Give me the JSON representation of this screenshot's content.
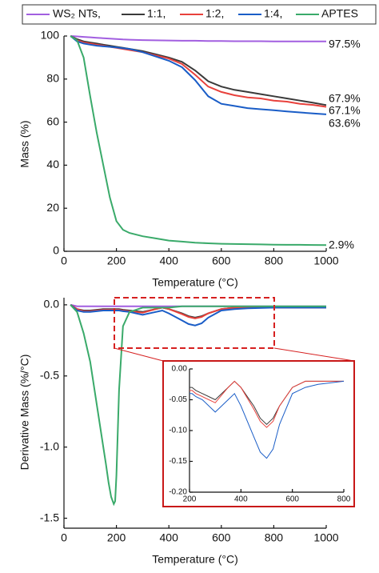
{
  "chart_data": [
    {
      "type": "line",
      "ylabel": "Mass (%)",
      "xlabel": "Temperature (°C)",
      "x": [
        25,
        50,
        75,
        100,
        125,
        150,
        175,
        200,
        225,
        250,
        300,
        350,
        400,
        450,
        500,
        550,
        600,
        650,
        700,
        750,
        800,
        850,
        900,
        950,
        1000
      ],
      "xlim": [
        0,
        1000
      ],
      "xticks": [
        0,
        200,
        400,
        600,
        800,
        1000
      ],
      "ylim": [
        0,
        100
      ],
      "yticks": [
        0,
        20,
        40,
        60,
        80,
        100
      ],
      "series": [
        {
          "name": "WS₂ NTs,",
          "color": "#a25fe0",
          "values": [
            100,
            99.8,
            99.6,
            99.4,
            99.2,
            99,
            98.8,
            98.6,
            98.4,
            98.3,
            98.1,
            98,
            97.9,
            97.8,
            97.8,
            97.7,
            97.7,
            97.6,
            97.6,
            97.6,
            97.5,
            97.5,
            97.5,
            97.5,
            97.5
          ]
        },
        {
          "name": "1:1,",
          "color": "#3a3a3a",
          "values": [
            100,
            98.5,
            97.5,
            97,
            96.5,
            96,
            95.5,
            95,
            94.5,
            94,
            93,
            91.5,
            90,
            88,
            84,
            79,
            76.5,
            75,
            74,
            73,
            72,
            71,
            70,
            69,
            67.9
          ]
        },
        {
          "name": "1:2,",
          "color": "#e8413c",
          "values": [
            100,
            98,
            97,
            96.5,
            96,
            95.5,
            95,
            94.5,
            94,
            93.5,
            92.5,
            91,
            89.5,
            87,
            82,
            76.5,
            74,
            72.5,
            71.5,
            71,
            70,
            69.5,
            68.5,
            68,
            67.1
          ]
        },
        {
          "name": "1:4,",
          "color": "#1a5dc7",
          "values": [
            100,
            97.5,
            96.5,
            96,
            95.5,
            95.2,
            95,
            94.7,
            94.3,
            94,
            92.5,
            90.5,
            88.5,
            85.5,
            79.5,
            72,
            68.5,
            67.5,
            66.5,
            66,
            65.5,
            65,
            64.5,
            64,
            63.6
          ]
        },
        {
          "name": "APTES",
          "color": "#3aaa6a",
          "values": [
            100,
            98,
            90,
            72,
            55,
            40,
            25,
            14,
            10,
            8.5,
            7,
            6,
            5,
            4.5,
            4,
            3.7,
            3.5,
            3.4,
            3.3,
            3.2,
            3.1,
            3,
            3,
            2.95,
            2.9
          ]
        }
      ],
      "annotations": [
        "97.5%",
        "67.9%",
        "67.1%",
        "63.6%",
        "2.9%"
      ]
    },
    {
      "type": "line",
      "ylabel": "Derivative Mass (%/°C)",
      "xlabel": "Temperature (°C)",
      "x": [
        25,
        50,
        75,
        100,
        125,
        150,
        160,
        170,
        180,
        190,
        195,
        200,
        210,
        225,
        250,
        300,
        350,
        375,
        400,
        450,
        475,
        500,
        525,
        550,
        600,
        650,
        700,
        800,
        900,
        1000
      ],
      "xlim": [
        0,
        1000
      ],
      "xticks": [
        0,
        200,
        400,
        600,
        800,
        1000
      ],
      "ylim": [
        -1.57,
        0.05
      ],
      "yticks": [
        {
          "value": 0,
          "label": "0.0"
        },
        -0.5,
        {
          "value": -1,
          "label": "-1.0"
        },
        -1.5
      ],
      "series": [
        {
          "color": "#a25fe0",
          "values": [
            0,
            -0.01,
            -0.01,
            -0.01,
            -0.01,
            -0.01,
            -0.01,
            -0.01,
            -0.01,
            -0.01,
            -0.01,
            -0.01,
            -0.01,
            -0.01,
            -0.01,
            -0.01,
            -0.01,
            -0.01,
            -0.01,
            -0.01,
            -0.01,
            -0.01,
            -0.01,
            -0.01,
            -0.01,
            -0.01,
            -0.01,
            -0.01,
            -0.01,
            -0.01
          ]
        },
        {
          "color": "#3a3a3a",
          "values": [
            0,
            -0.03,
            -0.04,
            -0.04,
            -0.035,
            -0.03,
            -0.03,
            -0.03,
            -0.03,
            -0.03,
            -0.03,
            -0.03,
            -0.03,
            -0.035,
            -0.04,
            -0.05,
            -0.03,
            -0.02,
            -0.03,
            -0.06,
            -0.08,
            -0.09,
            -0.08,
            -0.06,
            -0.03,
            -0.02,
            -0.02,
            -0.02,
            -0.02,
            -0.02
          ]
        },
        {
          "color": "#e8413c",
          "values": [
            0,
            -0.03,
            -0.045,
            -0.045,
            -0.04,
            -0.035,
            -0.035,
            -0.035,
            -0.035,
            -0.035,
            -0.035,
            -0.035,
            -0.035,
            -0.04,
            -0.045,
            -0.055,
            -0.03,
            -0.02,
            -0.03,
            -0.065,
            -0.085,
            -0.095,
            -0.085,
            -0.06,
            -0.03,
            -0.02,
            -0.02,
            -0.02,
            -0.02,
            -0.02
          ]
        },
        {
          "color": "#1a5dc7",
          "values": [
            0,
            -0.04,
            -0.05,
            -0.05,
            -0.045,
            -0.04,
            -0.04,
            -0.04,
            -0.04,
            -0.04,
            -0.04,
            -0.04,
            -0.04,
            -0.045,
            -0.05,
            -0.07,
            -0.05,
            -0.04,
            -0.06,
            -0.11,
            -0.135,
            -0.145,
            -0.13,
            -0.09,
            -0.04,
            -0.03,
            -0.025,
            -0.02,
            -0.02,
            -0.02
          ]
        },
        {
          "color": "#3aaa6a",
          "values": [
            0,
            -0.05,
            -0.2,
            -0.4,
            -0.7,
            -1,
            -1.12,
            -1.25,
            -1.35,
            -1.4,
            -1.38,
            -1.2,
            -0.6,
            -0.15,
            -0.05,
            -0.02,
            -0.02,
            -0.02,
            -0.02,
            -0.01,
            -0.01,
            -0.01,
            -0.01,
            -0.01,
            -0.01,
            -0.01,
            -0.01,
            -0.01,
            -0.01,
            -0.01
          ]
        }
      ]
    },
    {
      "type": "inset",
      "xlim": [
        200,
        800
      ],
      "xticks": [
        200,
        400,
        600,
        800
      ],
      "ylim": [
        -0.2,
        0
      ],
      "yticks": [
        {
          "value": 0,
          "label": "0.00"
        },
        -0.05,
        {
          "value": -0.1,
          "label": "-0.10"
        },
        -0.15,
        {
          "value": -0.2,
          "label": "-0.20"
        }
      ]
    }
  ]
}
